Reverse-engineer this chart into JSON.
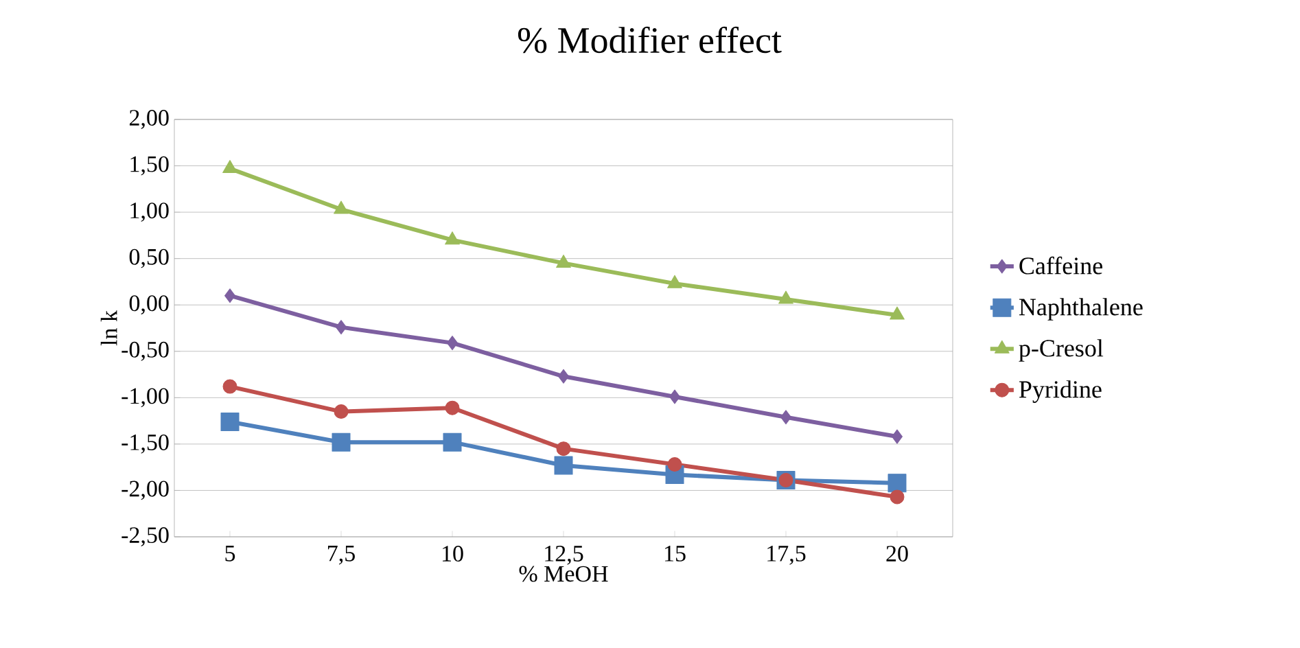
{
  "chart_data": {
    "type": "line",
    "title": "% Modifier effect",
    "xlabel": "% MeOH",
    "ylabel": "ln k",
    "categories": [
      "5",
      "7,5",
      "10",
      "12,5",
      "15",
      "17,5",
      "20"
    ],
    "series": [
      {
        "name": "Caffeine",
        "color": "#7d5fa0",
        "marker": "diamond",
        "values": [
          0.1,
          -0.24,
          -0.41,
          -0.77,
          -0.99,
          -1.21,
          -1.42
        ]
      },
      {
        "name": "Naphthalene",
        "color": "#4f81bd",
        "marker": "square",
        "values": [
          -1.26,
          -1.48,
          -1.48,
          -1.73,
          -1.83,
          -1.89,
          -1.92
        ]
      },
      {
        "name": "p-Cresol",
        "color": "#9bbb59",
        "marker": "triangle",
        "values": [
          1.47,
          1.03,
          0.7,
          0.45,
          0.23,
          0.06,
          -0.11
        ]
      },
      {
        "name": "Pyridine",
        "color": "#c0504d",
        "marker": "circle",
        "values": [
          -0.88,
          -1.15,
          -1.11,
          -1.55,
          -1.72,
          -1.89,
          -2.07
        ]
      }
    ],
    "ylim": [
      -2.5,
      2.0
    ],
    "yticks": [
      {
        "value": -2.5,
        "label": "-2,50"
      },
      {
        "value": -2.0,
        "label": "-2,00"
      },
      {
        "value": -1.5,
        "label": "-1,50"
      },
      {
        "value": -1.0,
        "label": "-1,00"
      },
      {
        "value": -0.5,
        "label": "-0,50"
      },
      {
        "value": 0.0,
        "label": "0,00"
      },
      {
        "value": 0.5,
        "label": "0,50"
      },
      {
        "value": 1.0,
        "label": "1,00"
      },
      {
        "value": 1.5,
        "label": "1,50"
      },
      {
        "value": 2.0,
        "label": "2,00"
      }
    ],
    "grid": "y",
    "legend": "right"
  }
}
